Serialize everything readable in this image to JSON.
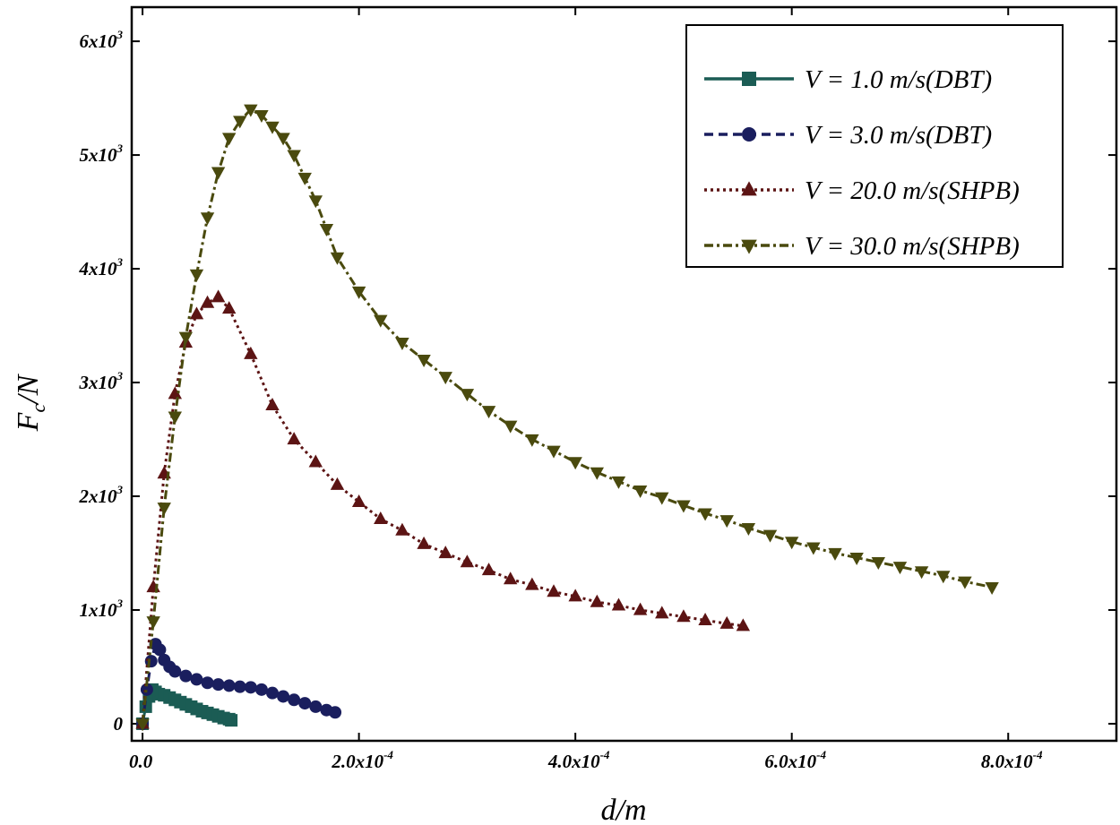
{
  "chart_data": {
    "type": "line",
    "xlabel": "d/m",
    "ylabel_main": "F",
    "ylabel_sub": "c",
    "ylabel_tail": "/N",
    "xlim": [
      -1e-05,
      0.0009
    ],
    "ylim": [
      -150,
      6300
    ],
    "xticks": [
      {
        "value": 0.0,
        "base": "0.0",
        "exp": ""
      },
      {
        "value": 0.0002,
        "base": "2.0x10",
        "exp": "-4"
      },
      {
        "value": 0.0004,
        "base": "4.0x10",
        "exp": "-4"
      },
      {
        "value": 0.0006,
        "base": "6.0x10",
        "exp": "-4"
      },
      {
        "value": 0.0008,
        "base": "8.0x10",
        "exp": "-4"
      }
    ],
    "yticks": [
      {
        "value": 0,
        "base": "0",
        "exp": ""
      },
      {
        "value": 1000,
        "base": "1x10",
        "exp": "3"
      },
      {
        "value": 2000,
        "base": "2x10",
        "exp": "3"
      },
      {
        "value": 3000,
        "base": "3x10",
        "exp": "3"
      },
      {
        "value": 4000,
        "base": "4x10",
        "exp": "3"
      },
      {
        "value": 5000,
        "base": "5x10",
        "exp": "3"
      },
      {
        "value": 6000,
        "base": "6x10",
        "exp": "3"
      }
    ],
    "legend_position": "top-right",
    "series": [
      {
        "name": "V = 1.0 m/s(DBT)",
        "color": "#1b5c54",
        "marker": "square",
        "dash": "solid",
        "x": [
          0,
          3e-06,
          6e-06,
          9e-06,
          1.2e-05,
          1.5e-05,
          2e-05,
          2.5e-05,
          3e-05,
          3.5e-05,
          4e-05,
          4.5e-05,
          5e-05,
          5.5e-05,
          6e-05,
          6.5e-05,
          7e-05,
          7.5e-05,
          8e-05,
          8.2e-05
        ],
        "y": [
          0,
          150,
          240,
          300,
          280,
          260,
          250,
          230,
          210,
          190,
          170,
          150,
          130,
          110,
          95,
          80,
          65,
          50,
          40,
          30
        ]
      },
      {
        "name": "V = 3.0 m/s(DBT)",
        "color": "#1a1e5e",
        "marker": "circle",
        "dash": "dashed",
        "x": [
          0,
          4e-06,
          8e-06,
          1.2e-05,
          1.6e-05,
          2e-05,
          2.5e-05,
          3e-05,
          4e-05,
          5e-05,
          6e-05,
          7e-05,
          8e-05,
          9e-05,
          0.0001,
          0.00011,
          0.00012,
          0.00013,
          0.00014,
          0.00015,
          0.00016,
          0.00017,
          0.000178
        ],
        "y": [
          0,
          300,
          550,
          700,
          650,
          560,
          500,
          460,
          420,
          390,
          360,
          345,
          335,
          325,
          320,
          300,
          270,
          240,
          210,
          180,
          150,
          120,
          100
        ]
      },
      {
        "name": "V = 20.0 m/s(SHPB)",
        "color": "#5c1414",
        "marker": "triangle-up",
        "dash": "dotted",
        "x": [
          0,
          1e-05,
          2e-05,
          3e-05,
          4e-05,
          5e-05,
          6e-05,
          7e-05,
          8e-05,
          0.0001,
          0.00012,
          0.00014,
          0.00016,
          0.00018,
          0.0002,
          0.00022,
          0.00024,
          0.00026,
          0.00028,
          0.0003,
          0.00032,
          0.00034,
          0.00036,
          0.00038,
          0.0004,
          0.00042,
          0.00044,
          0.00046,
          0.00048,
          0.0005,
          0.00052,
          0.00054,
          0.000555
        ],
        "y": [
          0,
          1200,
          2200,
          2900,
          3350,
          3600,
          3700,
          3750,
          3650,
          3250,
          2800,
          2500,
          2300,
          2100,
          1950,
          1800,
          1700,
          1580,
          1500,
          1420,
          1350,
          1270,
          1220,
          1160,
          1120,
          1070,
          1040,
          1000,
          970,
          940,
          910,
          880,
          860
        ]
      },
      {
        "name": "V = 30.0 m/s(SHPB)",
        "color": "#4a4a0e",
        "marker": "triangle-down",
        "dash": "dashdot",
        "x": [
          0,
          1e-05,
          2e-05,
          3e-05,
          4e-05,
          5e-05,
          6e-05,
          7e-05,
          8e-05,
          9e-05,
          0.0001,
          0.00011,
          0.00012,
          0.00013,
          0.00014,
          0.00015,
          0.00016,
          0.00017,
          0.00018,
          0.0002,
          0.00022,
          0.00024,
          0.00026,
          0.00028,
          0.0003,
          0.00032,
          0.00034,
          0.00036,
          0.00038,
          0.0004,
          0.00042,
          0.00044,
          0.00046,
          0.00048,
          0.0005,
          0.00052,
          0.00054,
          0.00056,
          0.00058,
          0.0006,
          0.00062,
          0.00064,
          0.00066,
          0.00068,
          0.0007,
          0.00072,
          0.00074,
          0.00076,
          0.000785
        ],
        "y": [
          0,
          900,
          1900,
          2700,
          3400,
          3950,
          4450,
          4850,
          5150,
          5300,
          5400,
          5350,
          5250,
          5150,
          5000,
          4800,
          4600,
          4350,
          4100,
          3800,
          3550,
          3350,
          3200,
          3050,
          2900,
          2750,
          2620,
          2500,
          2400,
          2300,
          2210,
          2130,
          2050,
          1990,
          1920,
          1850,
          1790,
          1720,
          1660,
          1600,
          1550,
          1500,
          1460,
          1420,
          1380,
          1340,
          1300,
          1250,
          1200
        ]
      }
    ]
  }
}
